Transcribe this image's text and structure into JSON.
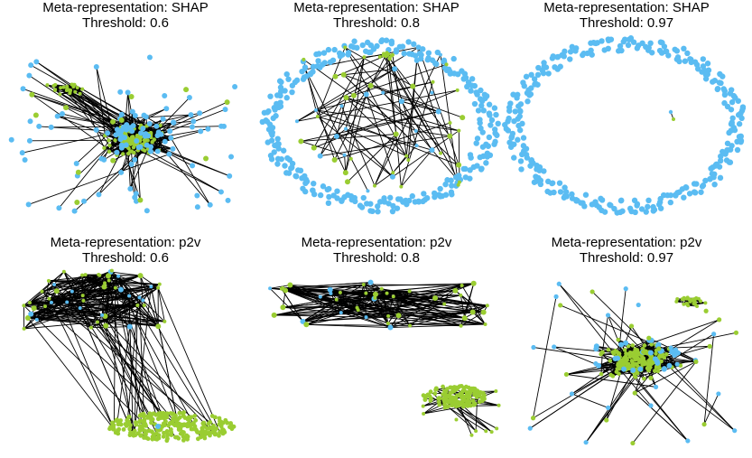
{
  "colors": {
    "meta_node": "#5bbcf2",
    "patient_node": "#9acd32",
    "edge": "#000000"
  },
  "panels": [
    {
      "title": "Meta-representation: SHAP",
      "subtitle": "Threshold: 0.6"
    },
    {
      "title": "Meta-representation: SHAP",
      "subtitle": "Threshold: 0.8"
    },
    {
      "title": "Meta-representation: SHAP",
      "subtitle": "Threshold: 0.97"
    },
    {
      "title": "Meta-representation: p2v",
      "subtitle": "Threshold: 0.6"
    },
    {
      "title": "Meta-representation: p2v",
      "subtitle": "Threshold: 0.8"
    },
    {
      "title": "Meta-representation: p2v",
      "subtitle": "Threshold: 0.97"
    }
  ]
}
